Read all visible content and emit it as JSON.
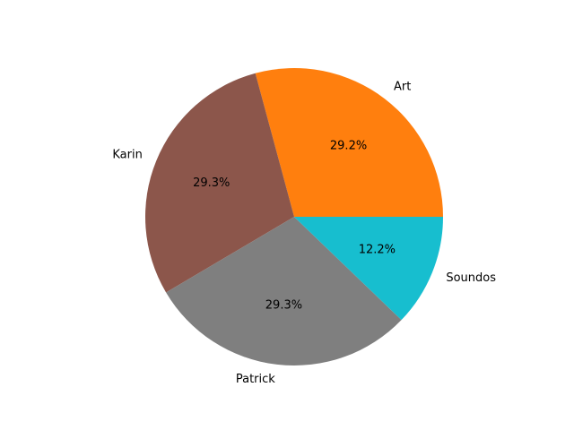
{
  "chart_data": {
    "type": "pie",
    "labels": [
      "Art",
      "Karin",
      "Patrick",
      "Soundos"
    ],
    "values": [
      29.2,
      29.3,
      29.3,
      12.2
    ],
    "percent_labels": [
      "29.2%",
      "29.3%",
      "29.3%",
      "12.2%"
    ],
    "colors": [
      "#ff7f0e",
      "#8c564b",
      "#7f7f7f",
      "#17becf"
    ],
    "start_angle_deg": 0,
    "direction": "counterclockwise",
    "legend": "none"
  }
}
